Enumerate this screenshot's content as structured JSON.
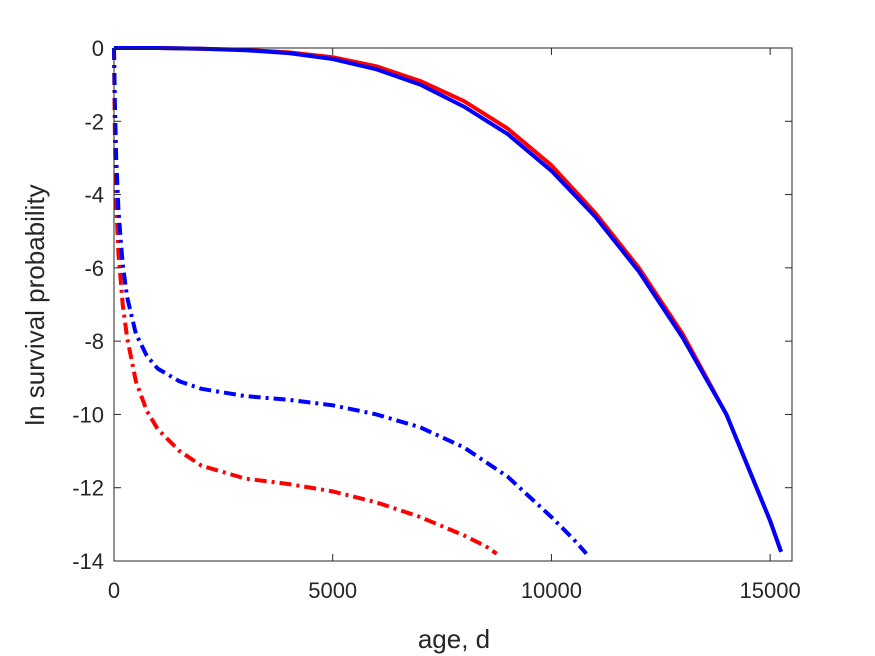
{
  "chart_data": {
    "type": "line",
    "title": "",
    "xlabel": "age, d",
    "ylabel": "ln survival probability",
    "xlim": [
      0,
      15500
    ],
    "ylim": [
      -14,
      0
    ],
    "xticks": [
      0,
      5000,
      10000,
      15000
    ],
    "yticks": [
      0,
      -2,
      -4,
      -6,
      -8,
      -10,
      -12,
      -14
    ],
    "xtick_labels": [
      "0",
      "5000",
      "10000",
      "15000"
    ],
    "ytick_labels": [
      "0",
      "-2",
      "-4",
      "-6",
      "-8",
      "-10",
      "-12",
      "-14"
    ],
    "grid": false,
    "legend": "none",
    "series": [
      {
        "color": "#ff0000",
        "style": "solid",
        "x": [
          0,
          1000,
          2000,
          3000,
          4000,
          5000,
          6000,
          7000,
          8000,
          9000,
          10000,
          11000,
          12000,
          13000,
          14000,
          15000,
          15250
        ],
        "y": [
          0,
          0,
          -0.02,
          -0.05,
          -0.12,
          -0.25,
          -0.5,
          -0.9,
          -1.45,
          -2.2,
          -3.2,
          -4.5,
          -6.0,
          -7.8,
          -10.0,
          -12.9,
          -13.75
        ]
      },
      {
        "color": "#0000ff",
        "style": "solid",
        "x": [
          0,
          1000,
          2000,
          3000,
          4000,
          5000,
          6000,
          7000,
          8000,
          9000,
          10000,
          11000,
          12000,
          13000,
          14000,
          15000,
          15250
        ],
        "y": [
          0,
          0,
          -0.02,
          -0.06,
          -0.14,
          -0.3,
          -0.58,
          -1.0,
          -1.6,
          -2.35,
          -3.35,
          -4.6,
          -6.1,
          -7.9,
          -10.0,
          -12.9,
          -13.75
        ]
      },
      {
        "color": "#ff0000",
        "style": "dash-dot",
        "x": [
          0,
          20,
          50,
          100,
          150,
          200,
          300,
          500,
          750,
          1000,
          1500,
          2000,
          3000,
          4000,
          5000,
          6000,
          7000,
          7500,
          8000,
          8500,
          8750
        ],
        "y": [
          0,
          -2.5,
          -4.2,
          -5.6,
          -6.3,
          -7.0,
          -7.9,
          -9.1,
          -9.9,
          -10.4,
          -11.0,
          -11.4,
          -11.75,
          -11.9,
          -12.1,
          -12.4,
          -12.8,
          -13.05,
          -13.3,
          -13.6,
          -13.8
        ]
      },
      {
        "color": "#0000ff",
        "style": "dash-dot",
        "x": [
          0,
          20,
          50,
          100,
          150,
          200,
          300,
          500,
          750,
          1000,
          1500,
          2000,
          3000,
          4000,
          5000,
          6000,
          7000,
          8000,
          9000,
          10000,
          10500,
          10800
        ],
        "y": [
          0,
          -1.5,
          -3.0,
          -4.4,
          -5.2,
          -5.9,
          -6.8,
          -7.8,
          -8.4,
          -8.75,
          -9.1,
          -9.3,
          -9.5,
          -9.6,
          -9.75,
          -10.0,
          -10.35,
          -10.9,
          -11.7,
          -12.8,
          -13.4,
          -13.8
        ]
      }
    ]
  }
}
